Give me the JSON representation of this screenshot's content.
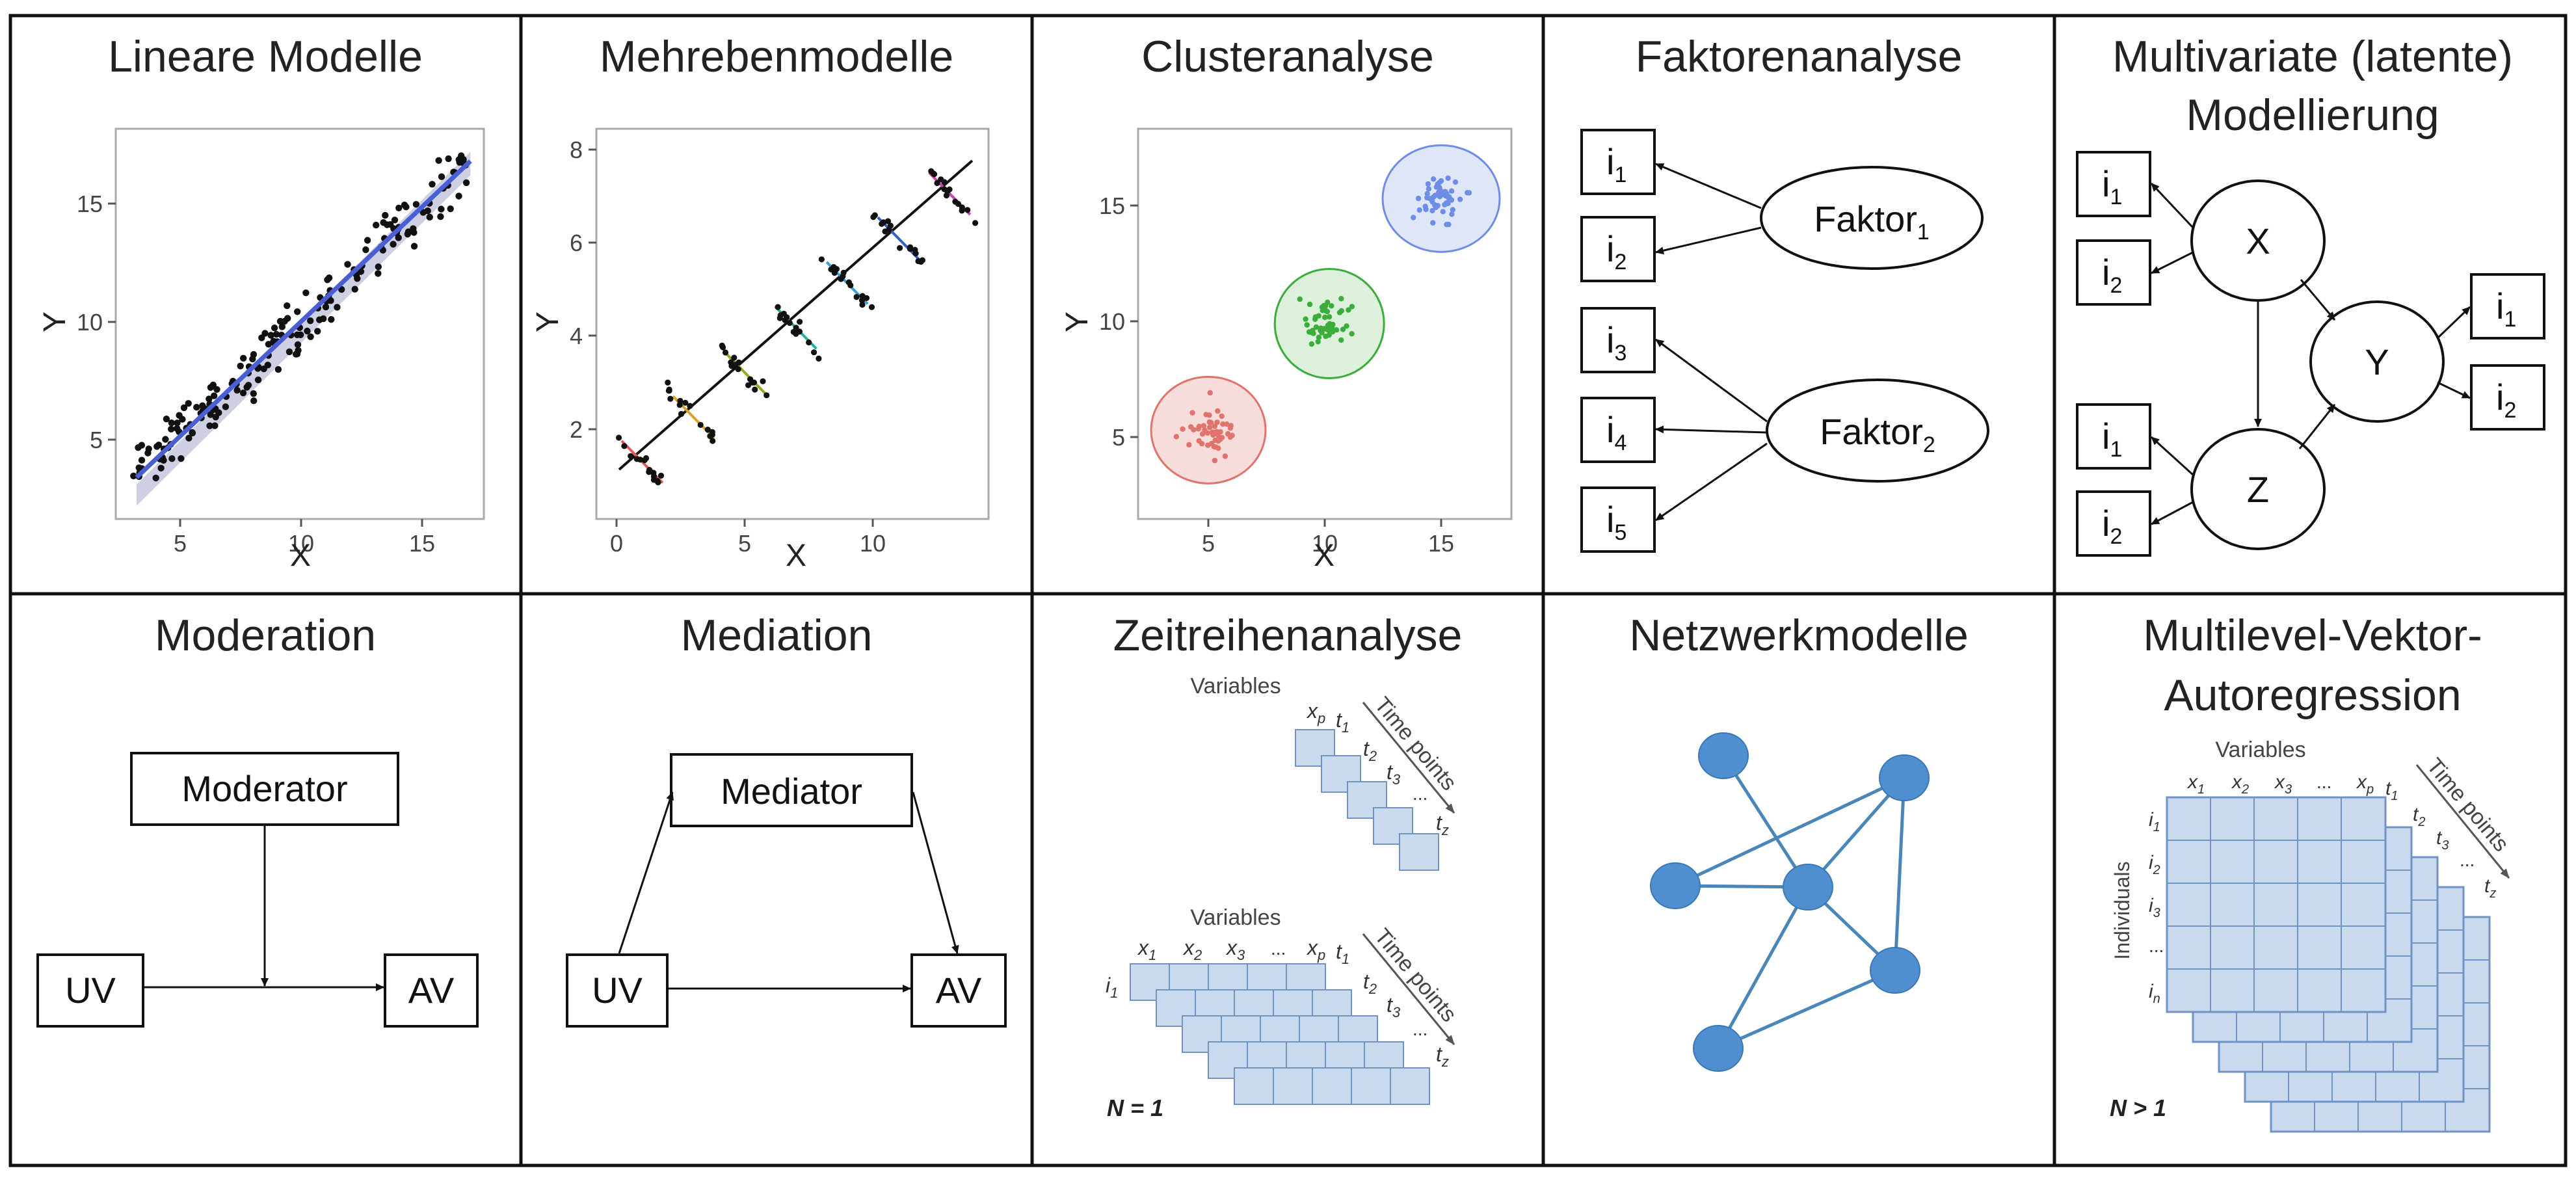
{
  "panels": {
    "lineare_modelle": {
      "title": "Lineare Modelle",
      "xlabel": "X",
      "ylabel": "Y",
      "xticks": [
        "5",
        "10",
        "15"
      ],
      "yticks": [
        "5",
        "10",
        "15"
      ]
    },
    "mehrebenenmodelle": {
      "title": "Mehrebenmodelle",
      "xlabel": "X",
      "ylabel": "Y",
      "xticks": [
        "0",
        "5",
        "10"
      ],
      "yticks": [
        "2",
        "4",
        "6",
        "8"
      ]
    },
    "clusteranalyse": {
      "title": "Clusteranalyse",
      "xlabel": "X",
      "ylabel": "Y",
      "xticks": [
        "5",
        "10",
        "15"
      ],
      "yticks": [
        "5",
        "10",
        "15"
      ]
    },
    "faktorenanalyse": {
      "title": "Faktorenanalyse",
      "factor1": "Faktor",
      "factor1_sub": "1",
      "factor2": "Faktor",
      "factor2_sub": "2",
      "items": [
        {
          "base": "i",
          "sub": "1"
        },
        {
          "base": "i",
          "sub": "2"
        },
        {
          "base": "i",
          "sub": "3"
        },
        {
          "base": "i",
          "sub": "4"
        },
        {
          "base": "i",
          "sub": "5"
        }
      ]
    },
    "multivariate": {
      "title_line1": "Multivariate (latente)",
      "title_line2": "Modellierung",
      "node_x": "X",
      "node_y": "Y",
      "node_z": "Z",
      "item_base": "i",
      "sub1": "1",
      "sub2": "2"
    },
    "moderation": {
      "title": "Moderation",
      "moderator": "Moderator",
      "uv": "UV",
      "av": "AV"
    },
    "mediation": {
      "title": "Mediation",
      "mediator": "Mediator",
      "uv": "UV",
      "av": "AV"
    },
    "zeitreihenanalyse": {
      "title": "Zeitreihenanalyse",
      "variables": "Variables",
      "time_points": "Time points",
      "xp": "x",
      "xp_sub": "p",
      "x_subs": [
        "1",
        "2",
        "3"
      ],
      "dots": "...",
      "t_subs": [
        "1",
        "2",
        "3"
      ],
      "t_last": "z",
      "row_label_sub": "1",
      "n_label": "N = 1"
    },
    "netzwerkmodelle": {
      "title": "Netzwerkmodelle"
    },
    "mlvar": {
      "title_line1": "Multilevel-Vektor-",
      "title_line2": "Autoregression",
      "variables": "Variables",
      "time_points": "Time points",
      "individuals": "Individuals",
      "x_subs": [
        "1",
        "2",
        "3"
      ],
      "xp_sub": "p",
      "dots": "...",
      "i_subs": [
        "1",
        "2",
        "3"
      ],
      "i_last": "n",
      "t_subs": [
        "1",
        "2",
        "3"
      ],
      "t_last": "z",
      "n_label": "N > 1"
    }
  },
  "colors": {
    "point_black": "#111111",
    "regression_line": "#4a5fd6",
    "ci_band": "#c8cbe0",
    "cluster_red": "#e0746c",
    "cluster_red_fill": "#f6dcda",
    "cluster_green": "#3aad3a",
    "cluster_green_fill": "#dcf0dc",
    "cluster_blue": "#6e8ee6",
    "cluster_blue_fill": "#dfe6f8",
    "cell_fill": "#c9d9ee",
    "cell_stroke": "#6e93c4",
    "node_fill": "#4f8fcf",
    "edge": "#4a86b8"
  }
}
